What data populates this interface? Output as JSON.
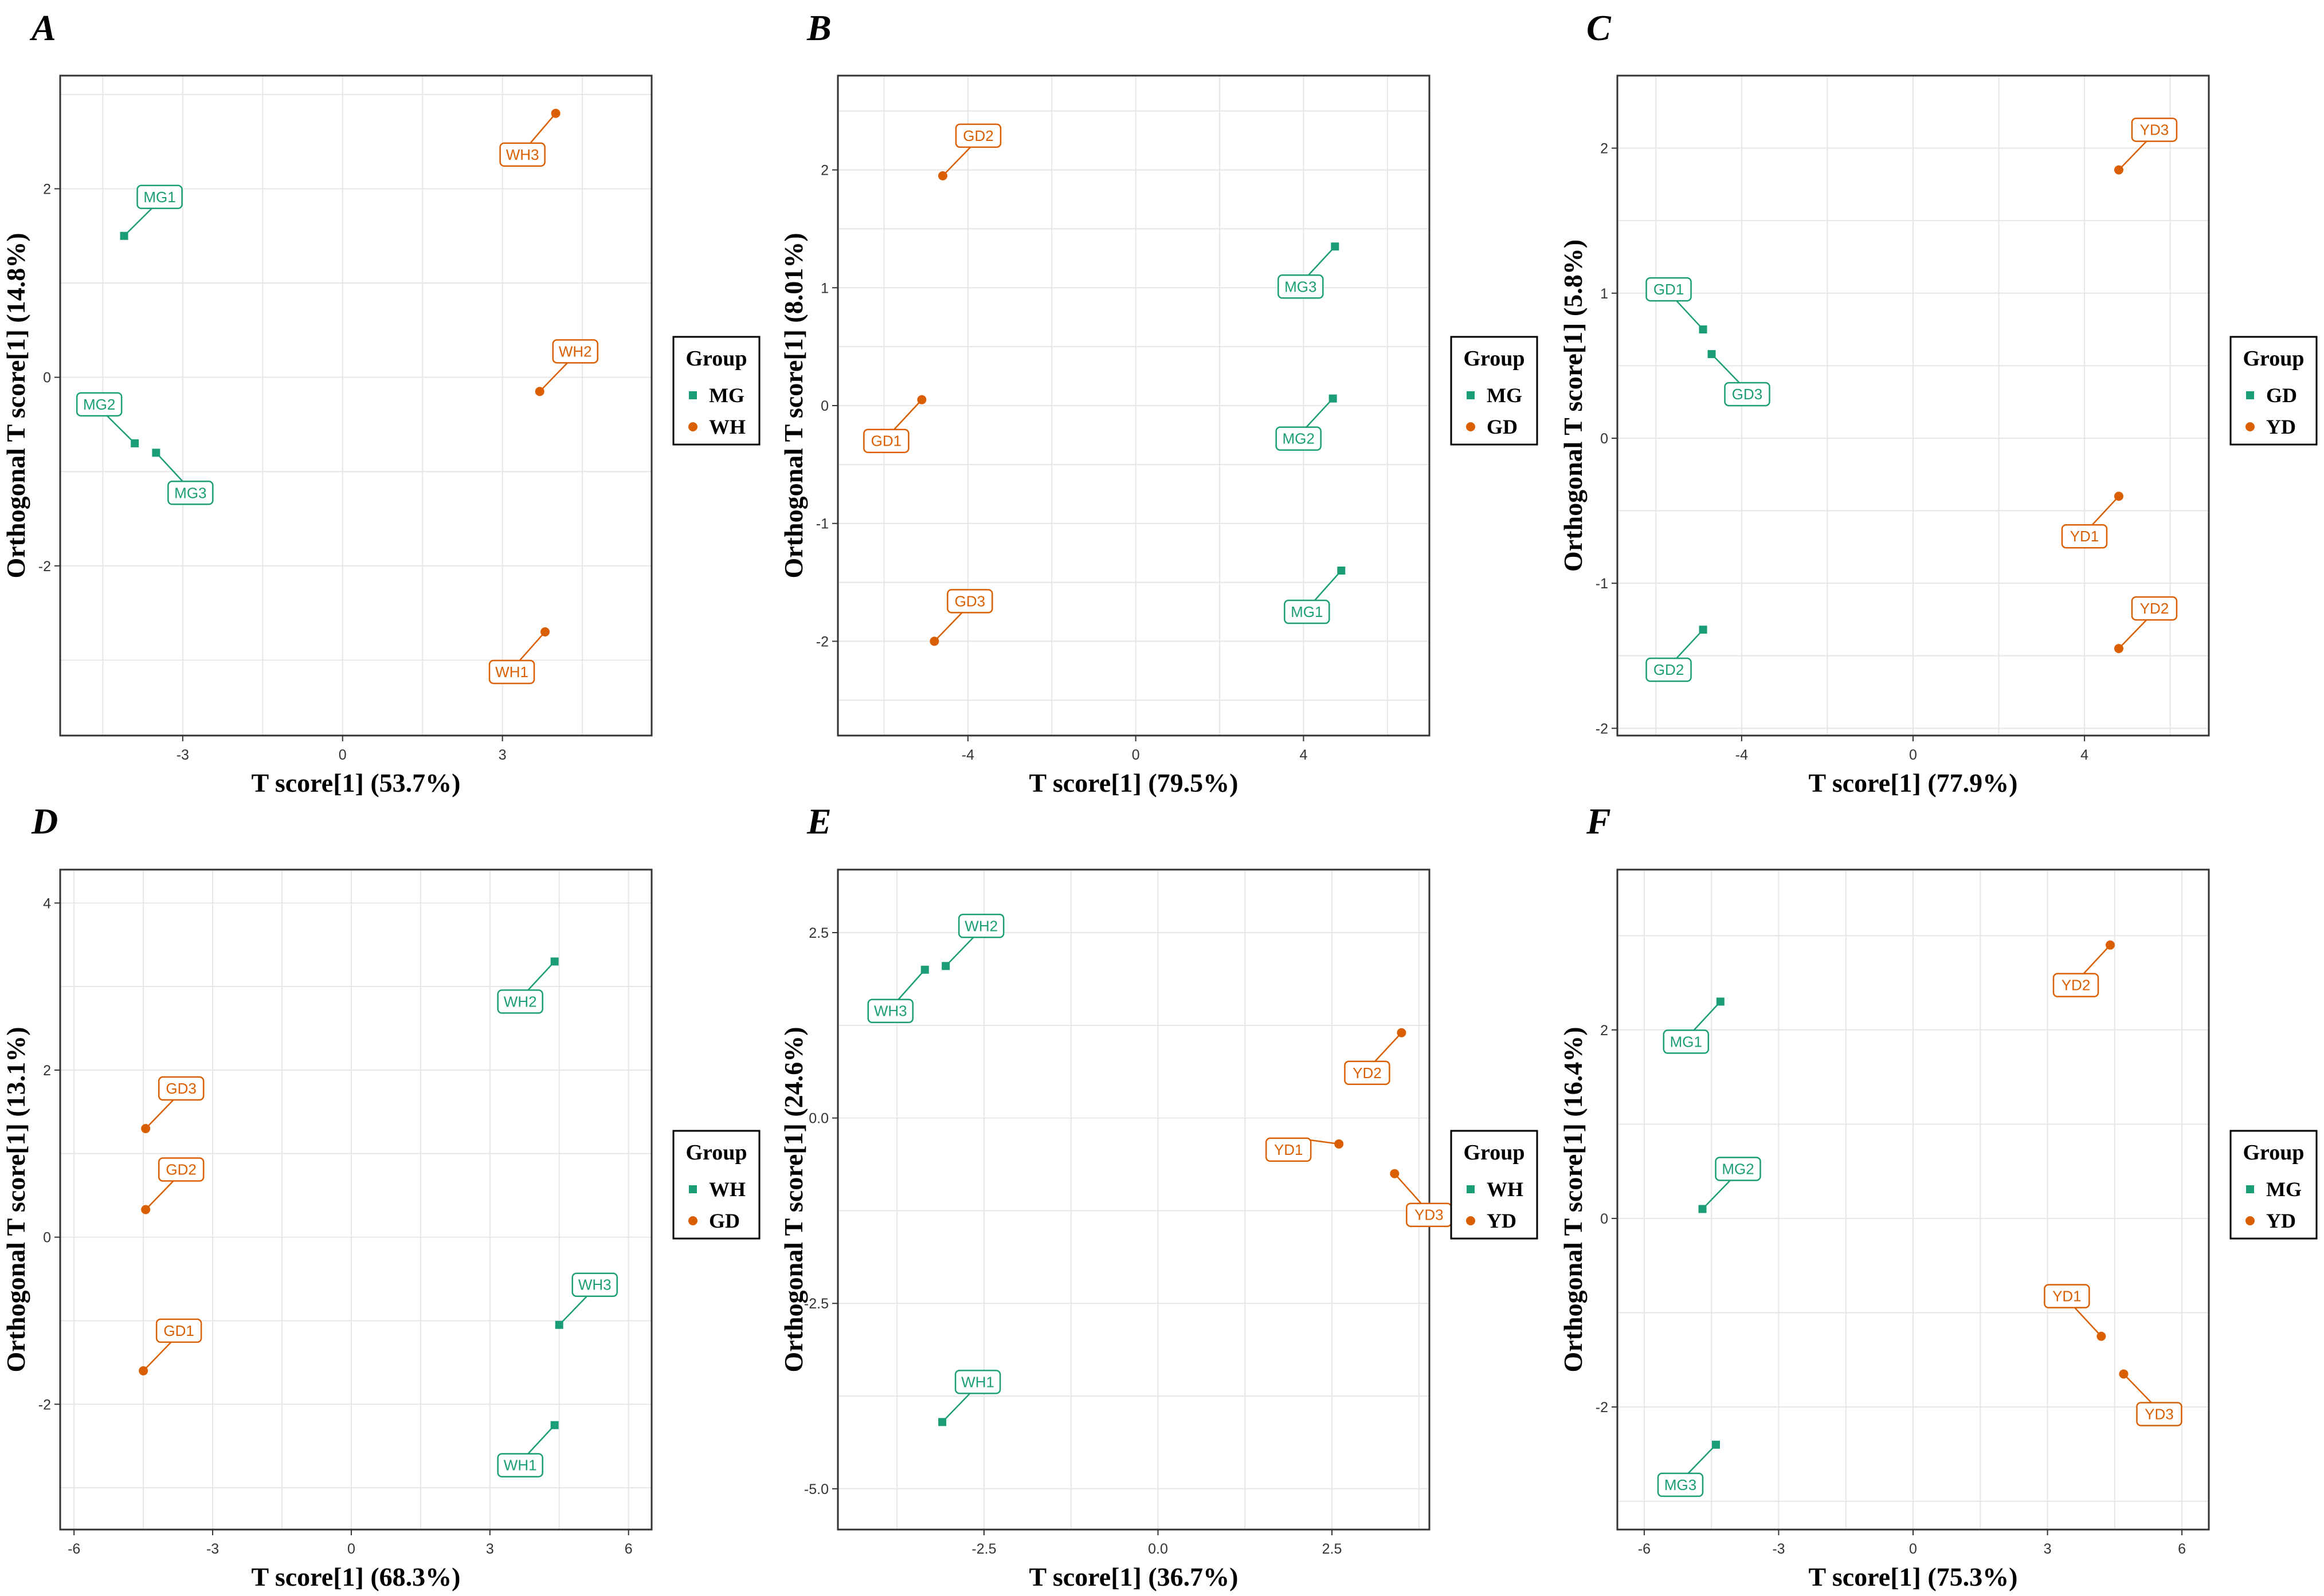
{
  "colors": {
    "group1": "#1b9e77",
    "group2": "#d95f02",
    "grid": "#e6e6e6",
    "frame": "#333333"
  },
  "chart_data": [
    {
      "panel": "A",
      "type": "scatter",
      "xlabel": "T score[1] (53.7%)",
      "ylabel": "Orthogonal T score[1] (14.8%)",
      "xlim": [
        -5.3,
        5.8
      ],
      "ylim": [
        -3.8,
        3.2
      ],
      "xticks": [
        {
          "v": -3,
          "t": "-3"
        },
        {
          "v": 0,
          "t": "0"
        },
        {
          "v": 3,
          "t": "3"
        }
      ],
      "yticks": [
        {
          "v": -2,
          "t": "-2"
        },
        {
          "v": 0,
          "t": "0"
        },
        {
          "v": 2,
          "t": "2"
        }
      ],
      "legend": {
        "title": "Group",
        "entries": [
          "MG",
          "WH"
        ]
      },
      "points": [
        {
          "name": "MG1",
          "x": -4.1,
          "y": 1.5,
          "group": 0
        },
        {
          "name": "MG2",
          "x": -3.9,
          "y": -0.7,
          "group": 0
        },
        {
          "name": "MG3",
          "x": -3.5,
          "y": -0.8,
          "group": 0
        },
        {
          "name": "WH1",
          "x": 3.8,
          "y": -2.7,
          "group": 1
        },
        {
          "name": "WH2",
          "x": 3.7,
          "y": -0.15,
          "group": 1
        },
        {
          "name": "WH3",
          "x": 4.0,
          "y": 2.8,
          "group": 1
        }
      ]
    },
    {
      "panel": "B",
      "type": "scatter",
      "xlabel": "T score[1] (79.5%)",
      "ylabel": "Orthogonal T score[1] (8.01%)",
      "xlim": [
        -7.1,
        7.0
      ],
      "ylim": [
        -2.8,
        2.8
      ],
      "xticks": [
        {
          "v": -4,
          "t": "-4"
        },
        {
          "v": 0,
          "t": "0"
        },
        {
          "v": 4,
          "t": "4"
        }
      ],
      "yticks": [
        {
          "v": -2,
          "t": "-2"
        },
        {
          "v": -1,
          "t": "-1"
        },
        {
          "v": 0,
          "t": "0"
        },
        {
          "v": 1,
          "t": "1"
        },
        {
          "v": 2,
          "t": "2"
        }
      ],
      "legend": {
        "title": "Group",
        "entries": [
          "MG",
          "GD"
        ]
      },
      "points": [
        {
          "name": "MG1",
          "x": 4.9,
          "y": -1.4,
          "group": 0
        },
        {
          "name": "MG2",
          "x": 4.7,
          "y": 0.06,
          "group": 0
        },
        {
          "name": "MG3",
          "x": 4.75,
          "y": 1.35,
          "group": 0
        },
        {
          "name": "GD1",
          "x": -5.1,
          "y": 0.05,
          "group": 1
        },
        {
          "name": "GD2",
          "x": -4.6,
          "y": 1.95,
          "group": 1
        },
        {
          "name": "GD3",
          "x": -4.8,
          "y": -2.0,
          "group": 1
        }
      ]
    },
    {
      "panel": "C",
      "type": "scatter",
      "xlabel": "T score[1] (77.9%)",
      "ylabel": "Orthogonal T score[1] (5.8%)",
      "xlim": [
        -6.9,
        6.9
      ],
      "ylim": [
        -2.05,
        2.5
      ],
      "xticks": [
        {
          "v": -4,
          "t": "-4"
        },
        {
          "v": 0,
          "t": "0"
        },
        {
          "v": 4,
          "t": "4"
        }
      ],
      "yticks": [
        {
          "v": -2,
          "t": "-2"
        },
        {
          "v": -1,
          "t": "-1"
        },
        {
          "v": 0,
          "t": "0"
        },
        {
          "v": 1,
          "t": "1"
        },
        {
          "v": 2,
          "t": "2"
        }
      ],
      "legend": {
        "title": "Group",
        "entries": [
          "GD",
          "YD"
        ]
      },
      "points": [
        {
          "name": "GD1",
          "x": -4.9,
          "y": 0.75,
          "group": 0
        },
        {
          "name": "GD2",
          "x": -4.9,
          "y": -1.32,
          "group": 0
        },
        {
          "name": "GD3",
          "x": -4.7,
          "y": 0.58,
          "group": 0
        },
        {
          "name": "YD1",
          "x": 4.8,
          "y": -0.4,
          "group": 1
        },
        {
          "name": "YD2",
          "x": 4.8,
          "y": -1.45,
          "group": 1
        },
        {
          "name": "YD3",
          "x": 4.8,
          "y": 1.85,
          "group": 1
        }
      ]
    },
    {
      "panel": "D",
      "type": "scatter",
      "xlabel": "T score[1] (68.3%)",
      "ylabel": "Orthogonal T score[1] (13.1%)",
      "xlim": [
        -6.3,
        6.5
      ],
      "ylim": [
        -3.5,
        4.4
      ],
      "xticks": [
        {
          "v": -6,
          "t": "-6"
        },
        {
          "v": -3,
          "t": "-3"
        },
        {
          "v": 0,
          "t": "0"
        },
        {
          "v": 3,
          "t": "3"
        },
        {
          "v": 6,
          "t": "6"
        }
      ],
      "yticks": [
        {
          "v": -2,
          "t": "-2"
        },
        {
          "v": 0,
          "t": "0"
        },
        {
          "v": 2,
          "t": "2"
        },
        {
          "v": 4,
          "t": "4"
        }
      ],
      "legend": {
        "title": "Group",
        "entries": [
          "WH",
          "GD"
        ]
      },
      "points": [
        {
          "name": "WH1",
          "x": 4.4,
          "y": -2.25,
          "group": 0
        },
        {
          "name": "WH2",
          "x": 4.4,
          "y": 3.3,
          "group": 0
        },
        {
          "name": "WH3",
          "x": 4.5,
          "y": -1.05,
          "group": 0
        },
        {
          "name": "GD1",
          "x": -4.5,
          "y": -1.6,
          "group": 1
        },
        {
          "name": "GD2",
          "x": -4.45,
          "y": 0.33,
          "group": 1
        },
        {
          "name": "GD3",
          "x": -4.45,
          "y": 1.3,
          "group": 1
        }
      ]
    },
    {
      "panel": "E",
      "type": "scatter",
      "xlabel": "T score[1] (36.7%)",
      "ylabel": "Orthogonal T score[1] (24.6%)",
      "xlim": [
        -4.6,
        3.9
      ],
      "ylim": [
        -5.55,
        3.35
      ],
      "xticks": [
        {
          "v": -2.5,
          "t": "-2.5"
        },
        {
          "v": 0,
          "t": "0.0"
        },
        {
          "v": 2.5,
          "t": "2.5"
        }
      ],
      "yticks": [
        {
          "v": -5,
          "t": "-5.0"
        },
        {
          "v": -2.5,
          "t": "-2.5"
        },
        {
          "v": 0,
          "t": "0.0"
        },
        {
          "v": 2.5,
          "t": "2.5"
        }
      ],
      "legend": {
        "title": "Group",
        "entries": [
          "WH",
          "YD"
        ]
      },
      "points": [
        {
          "name": "WH1",
          "x": -3.1,
          "y": -4.1,
          "group": 0
        },
        {
          "name": "WH2",
          "x": -3.05,
          "y": 2.05,
          "group": 0
        },
        {
          "name": "WH3",
          "x": -3.35,
          "y": 2.0,
          "group": 0
        },
        {
          "name": "YD1",
          "x": 2.6,
          "y": -0.35,
          "group": 1
        },
        {
          "name": "YD2",
          "x": 3.5,
          "y": 1.15,
          "group": 1
        },
        {
          "name": "YD3",
          "x": 3.4,
          "y": -0.75,
          "group": 1
        }
      ]
    },
    {
      "panel": "F",
      "type": "scatter",
      "xlabel": "T score[1] (75.3%)",
      "ylabel": "Orthogonal T score[1] (16.4%)",
      "xlim": [
        -6.6,
        6.6
      ],
      "ylim": [
        -3.3,
        3.7
      ],
      "xticks": [
        {
          "v": -6,
          "t": "-6"
        },
        {
          "v": -3,
          "t": "-3"
        },
        {
          "v": 0,
          "t": "0"
        },
        {
          "v": 3,
          "t": "3"
        },
        {
          "v": 6,
          "t": "6"
        }
      ],
      "yticks": [
        {
          "v": -2,
          "t": "-2"
        },
        {
          "v": 0,
          "t": "0"
        },
        {
          "v": 2,
          "t": "2"
        }
      ],
      "legend": {
        "title": "Group",
        "entries": [
          "MG",
          "YD"
        ]
      },
      "points": [
        {
          "name": "MG1",
          "x": -4.3,
          "y": 2.3,
          "group": 0
        },
        {
          "name": "MG2",
          "x": -4.7,
          "y": 0.1,
          "group": 0
        },
        {
          "name": "MG3",
          "x": -4.4,
          "y": -2.4,
          "group": 0
        },
        {
          "name": "YD1",
          "x": 4.2,
          "y": -1.25,
          "group": 1
        },
        {
          "name": "YD2",
          "x": 4.4,
          "y": 2.9,
          "group": 1
        },
        {
          "name": "YD3",
          "x": 4.7,
          "y": -1.65,
          "group": 1
        }
      ]
    }
  ]
}
